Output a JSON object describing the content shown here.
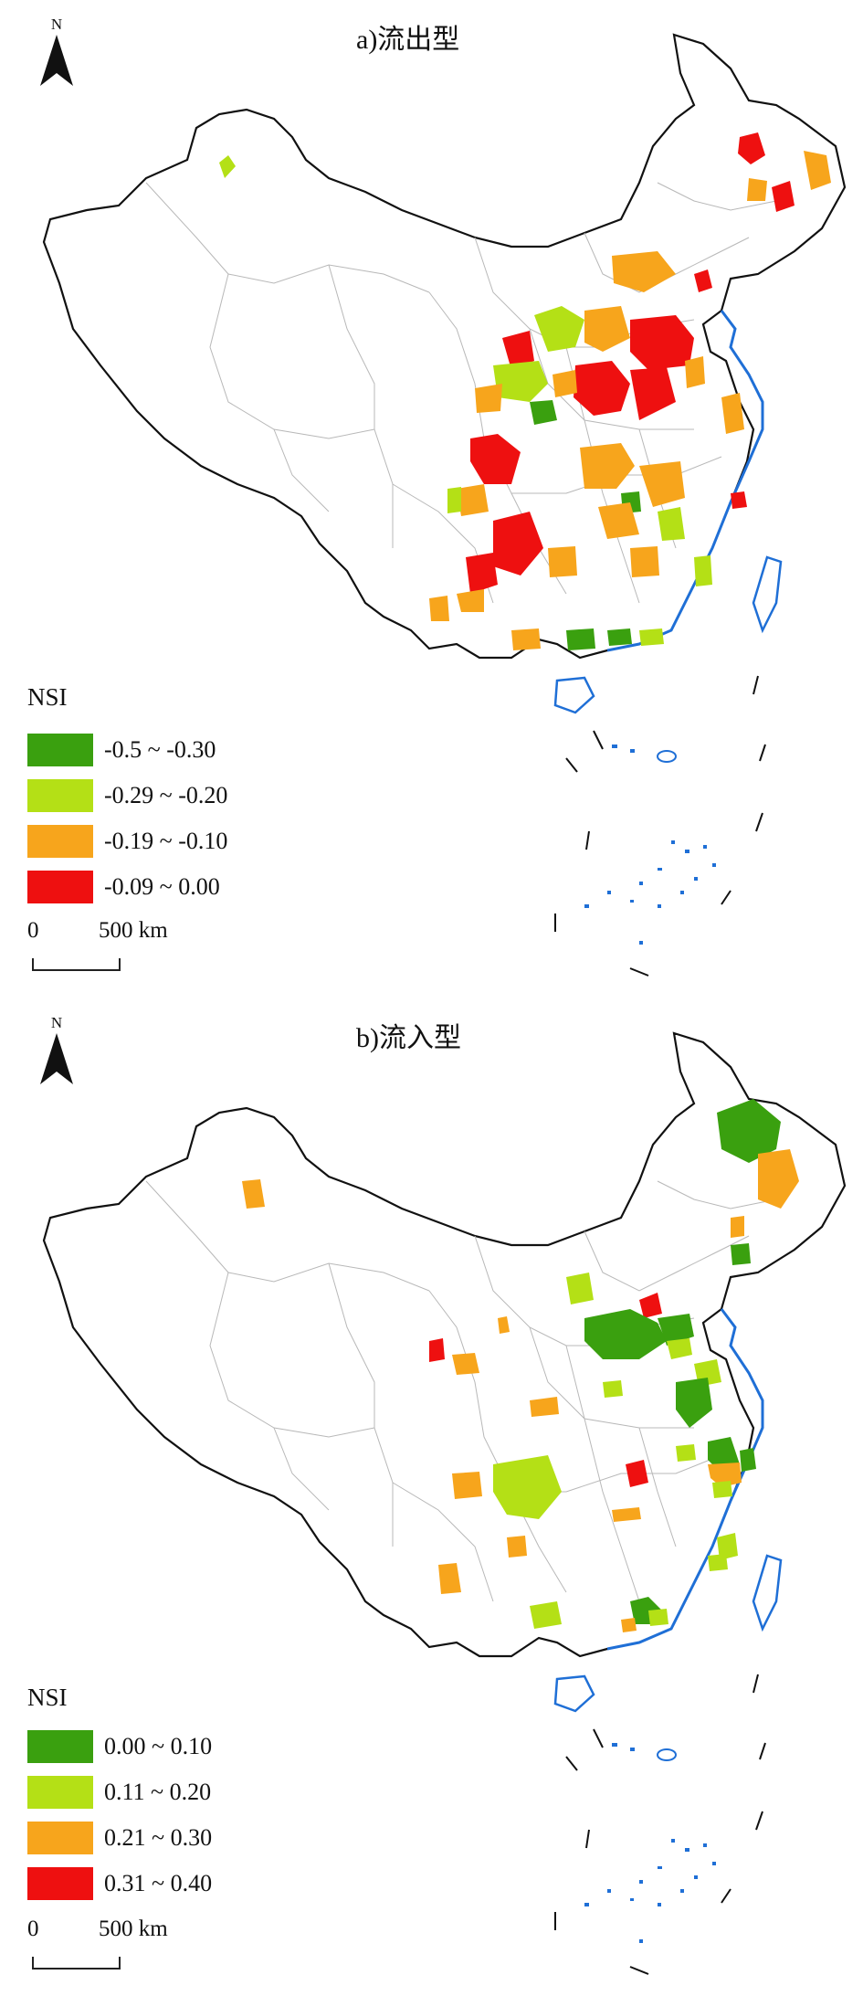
{
  "panels": [
    {
      "title": "a)流出型",
      "north_label": "N",
      "legend_title": "NSI",
      "legend": [
        {
          "label": "-0.5 ~ -0.30",
          "color": "#3aa00f"
        },
        {
          "label": "-0.29 ~ -0.20",
          "color": "#b4e016"
        },
        {
          "label": "-0.19 ~ -0.10",
          "color": "#f7a51c"
        },
        {
          "label": "-0.09 ~ 0.00",
          "color": "#ee1010"
        }
      ],
      "scale": {
        "zero": "0",
        "distance": "500 km"
      }
    },
    {
      "title": "b)流入型",
      "north_label": "N",
      "legend_title": "NSI",
      "legend": [
        {
          "label": "0.00 ~ 0.10",
          "color": "#3aa00f"
        },
        {
          "label": "0.11 ~ 0.20",
          "color": "#b4e016"
        },
        {
          "label": "0.21 ~ 0.30",
          "color": "#f7a51c"
        },
        {
          "label": "0.31 ~ 0.40",
          "color": "#ee1010"
        }
      ],
      "scale": {
        "zero": "0",
        "distance": "500 km"
      }
    }
  ],
  "colors": {
    "coast": "#1f6fd6",
    "border": "#111111",
    "province": "#b8b8b8"
  }
}
